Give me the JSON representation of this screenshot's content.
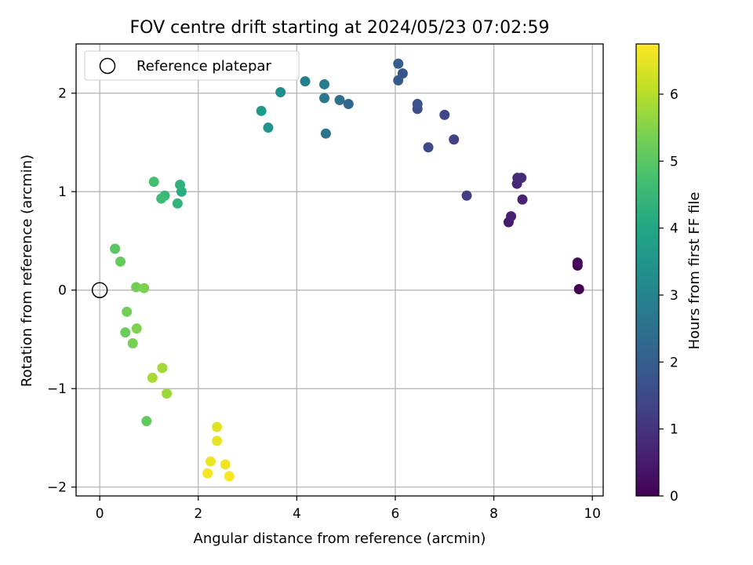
{
  "chart_data": {
    "type": "scatter",
    "title": "FOV centre drift starting at 2024/05/23 07:02:59",
    "xlabel": "Angular distance from reference (arcmin)",
    "ylabel": "Rotation from reference (arcmin)",
    "xlim": [
      -0.48,
      10.22
    ],
    "ylim": [
      -2.09,
      2.5
    ],
    "xticks": [
      0,
      2,
      4,
      6,
      8,
      10
    ],
    "yticks": [
      -2,
      -1,
      0,
      1,
      2
    ],
    "grid": true,
    "legend": {
      "placement": "top-left",
      "entries": [
        "Reference platepar"
      ]
    },
    "reference_point": {
      "x": 0,
      "y": 0
    },
    "colorbar": {
      "label": "Hours from first FF file",
      "range": [
        0,
        6.75
      ],
      "ticks": [
        0,
        1,
        2,
        3,
        4,
        5,
        6
      ],
      "colormap": "viridis"
    },
    "points": [
      {
        "x": 9.73,
        "y": 0.01,
        "c": 0.0
      },
      {
        "x": 9.7,
        "y": 0.25,
        "c": 0.07
      },
      {
        "x": 9.7,
        "y": 0.28,
        "c": 0.13
      },
      {
        "x": 8.3,
        "y": 0.69,
        "c": 0.5
      },
      {
        "x": 8.35,
        "y": 0.75,
        "c": 0.57
      },
      {
        "x": 8.58,
        "y": 0.92,
        "c": 0.63
      },
      {
        "x": 8.47,
        "y": 1.08,
        "c": 0.7
      },
      {
        "x": 8.48,
        "y": 1.14,
        "c": 0.77
      },
      {
        "x": 8.56,
        "y": 1.14,
        "c": 0.83
      },
      {
        "x": 7.45,
        "y": 0.96,
        "c": 1.2
      },
      {
        "x": 7.19,
        "y": 1.53,
        "c": 1.3
      },
      {
        "x": 7.0,
        "y": 1.78,
        "c": 1.4
      },
      {
        "x": 6.67,
        "y": 1.45,
        "c": 1.5
      },
      {
        "x": 6.45,
        "y": 1.84,
        "c": 1.6
      },
      {
        "x": 6.45,
        "y": 1.89,
        "c": 1.7
      },
      {
        "x": 6.15,
        "y": 2.2,
        "c": 1.8
      },
      {
        "x": 6.06,
        "y": 2.13,
        "c": 1.9
      },
      {
        "x": 6.06,
        "y": 2.3,
        "c": 2.0
      },
      {
        "x": 5.05,
        "y": 1.89,
        "c": 2.3
      },
      {
        "x": 4.87,
        "y": 1.93,
        "c": 2.45
      },
      {
        "x": 4.59,
        "y": 1.59,
        "c": 2.6
      },
      {
        "x": 4.56,
        "y": 1.95,
        "c": 2.7
      },
      {
        "x": 4.56,
        "y": 2.09,
        "c": 2.8
      },
      {
        "x": 4.17,
        "y": 2.12,
        "c": 2.9
      },
      {
        "x": 3.67,
        "y": 2.01,
        "c": 3.3
      },
      {
        "x": 3.42,
        "y": 1.65,
        "c": 3.45
      },
      {
        "x": 3.28,
        "y": 1.82,
        "c": 3.6
      },
      {
        "x": 1.66,
        "y": 1.0,
        "c": 4.2
      },
      {
        "x": 1.63,
        "y": 1.07,
        "c": 4.3
      },
      {
        "x": 1.58,
        "y": 0.88,
        "c": 4.4
      },
      {
        "x": 1.32,
        "y": 0.96,
        "c": 4.5
      },
      {
        "x": 1.25,
        "y": 0.93,
        "c": 4.6
      },
      {
        "x": 1.1,
        "y": 1.1,
        "c": 4.7
      },
      {
        "x": 0.31,
        "y": 0.42,
        "c": 5.0
      },
      {
        "x": 0.42,
        "y": 0.29,
        "c": 5.15
      },
      {
        "x": 0.74,
        "y": 0.03,
        "c": 5.3
      },
      {
        "x": 0.9,
        "y": 0.02,
        "c": 5.4
      },
      {
        "x": 0.55,
        "y": -0.22,
        "c": 5.3
      },
      {
        "x": 0.75,
        "y": -0.39,
        "c": 5.45
      },
      {
        "x": 0.52,
        "y": -0.43,
        "c": 5.2
      },
      {
        "x": 0.67,
        "y": -0.54,
        "c": 5.35
      },
      {
        "x": 1.27,
        "y": -0.79,
        "c": 5.8
      },
      {
        "x": 1.07,
        "y": -0.89,
        "c": 5.85
      },
      {
        "x": 1.36,
        "y": -1.05,
        "c": 5.75
      },
      {
        "x": 0.95,
        "y": -1.33,
        "c": 5.1
      },
      {
        "x": 2.38,
        "y": -1.39,
        "c": 6.45
      },
      {
        "x": 2.38,
        "y": -1.53,
        "c": 6.5
      },
      {
        "x": 2.25,
        "y": -1.74,
        "c": 6.55
      },
      {
        "x": 2.55,
        "y": -1.77,
        "c": 6.6
      },
      {
        "x": 2.19,
        "y": -1.86,
        "c": 6.65
      },
      {
        "x": 2.63,
        "y": -1.89,
        "c": 6.7
      }
    ]
  }
}
